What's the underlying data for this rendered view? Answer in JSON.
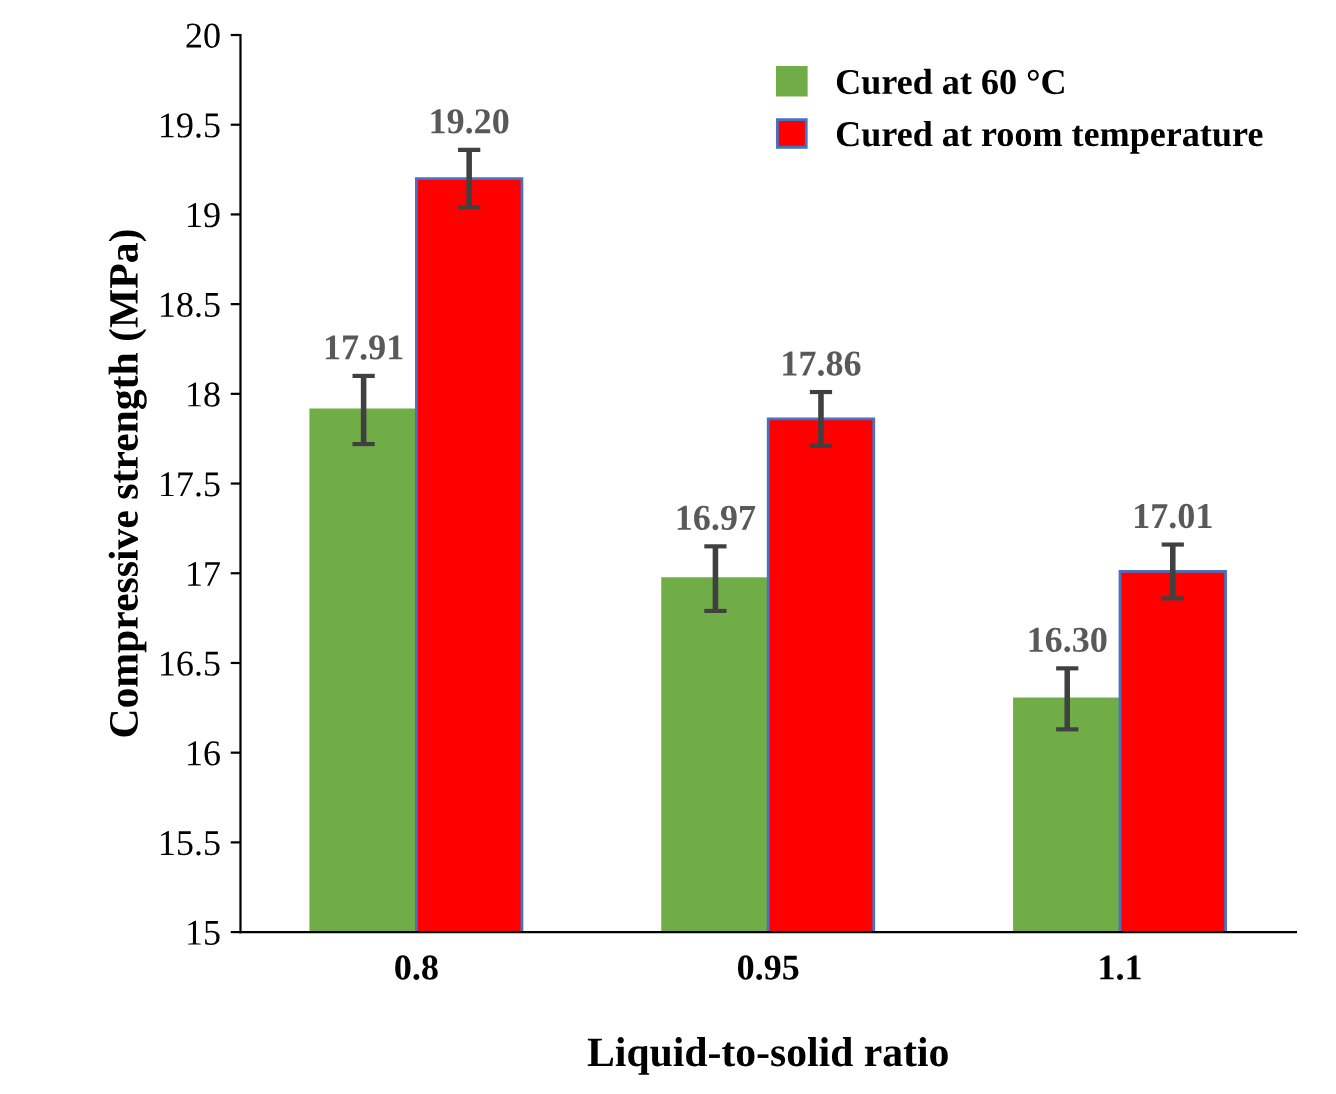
{
  "chart_data": {
    "type": "bar",
    "xlabel": "Liquid-to-solid ratio",
    "ylabel": "Compressive strength (MPa)",
    "categories": [
      "0.8",
      "0.95",
      "1.1"
    ],
    "series": [
      {
        "name": "Cured at 60 °C",
        "color": "#70ad47",
        "values": [
          17.91,
          16.97,
          16.3
        ],
        "value_labels": [
          "17.91",
          "16.97",
          "16.30"
        ],
        "errors": [
          0.19,
          0.18,
          0.17
        ]
      },
      {
        "name": "Cured at room temperature",
        "color": "#ff0000",
        "values": [
          19.2,
          17.86,
          17.01
        ],
        "value_labels": [
          "19.20",
          "17.86",
          "17.01"
        ],
        "errors": [
          0.16,
          0.15,
          0.15
        ]
      }
    ],
    "ylim": [
      15,
      20
    ],
    "yticks": [
      15,
      {
        "value": 15.5,
        "label": "15.5"
      },
      16,
      {
        "value": 16.5,
        "label": "16.5"
      },
      17,
      {
        "value": 17.5,
        "label": "17.5"
      },
      18,
      {
        "value": 18.5,
        "label": "18.5"
      },
      19,
      {
        "value": 19.5,
        "label": "19.5"
      },
      20
    ],
    "legend": "top right",
    "grid": false
  }
}
